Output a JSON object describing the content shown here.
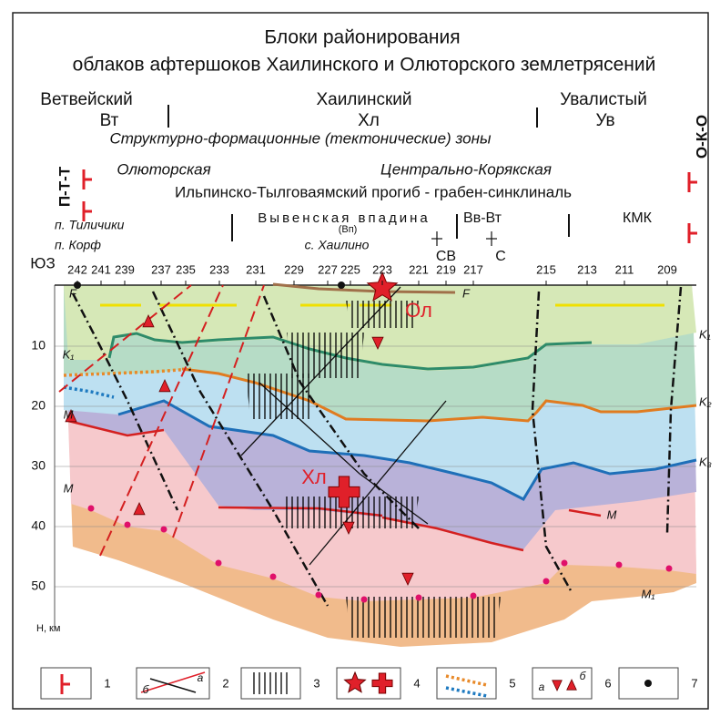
{
  "header": {
    "title_line1": "Блоки районирования",
    "title_line2": "облаков афтершоков Хаилинского и Олюторского землетрясений"
  },
  "zones": {
    "west_name": "Ветвейский",
    "west_code": "Вт",
    "center_name": "Хаилинский",
    "center_code": "Хл",
    "east_name": "Увалистый",
    "east_code": "Ув",
    "caption": "Структурно-формационные (тектонические) зоны",
    "left_mark": "П-Т-Т",
    "right_mark": "О-К-О",
    "olyutor": "Олюторская",
    "central_koryak": "Центрально-Корякская",
    "trough": "Ильпинско-Тылговаямский прогиб - грабен-синклиналь",
    "depression": "Вывенская впадина",
    "depression_code": "(Вп)",
    "vv_vt": "Вв-Вт",
    "kmk": "КМК"
  },
  "places": {
    "tilichiki": "п. Тиличики",
    "korf": "п. Корф",
    "khailino": "с. Хаилино",
    "sw": "ЮЗ",
    "ne": "СВ",
    "n": "С"
  },
  "profile_points": [
    "242",
    "241",
    "239",
    "237",
    "235",
    "233",
    "231",
    "229",
    "227",
    "225",
    "223",
    "221",
    "219",
    "217",
    "215",
    "213",
    "211",
    "209"
  ],
  "depth_labels": [
    "10",
    "20",
    "30",
    "40",
    "50"
  ],
  "depth_unit": "Н, км",
  "layer_labels": {
    "f_left": "F",
    "f_right": "F",
    "ol": "Ол",
    "hl": "Хл",
    "k1_left": "K₁",
    "k1_right": "K₁",
    "k2": "K₂",
    "k3": "K₃",
    "m_left_upper": "M",
    "m_left_lower": "M",
    "m_right": "M",
    "m1": "M₁"
  },
  "legend": {
    "n1": "1",
    "n2": "2",
    "n3": "3",
    "n4": "4",
    "n5": "5",
    "n6": "6",
    "n7": "7",
    "l2a": "а",
    "l2b": "б",
    "l6a": "а",
    "l6b": "б"
  }
}
